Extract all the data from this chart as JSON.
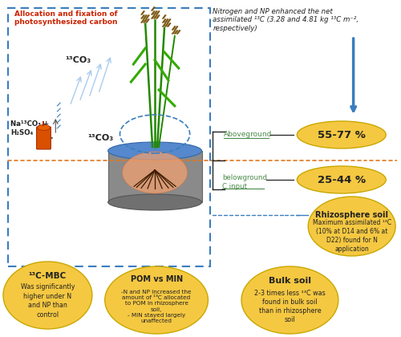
{
  "bg_color": "#ffffff",
  "top_text": "Nitrogen and NP enhanced the net\nassimilated ¹³C (3.28 and 4.81 kg ¹³C m⁻²,\nrespectively)",
  "alloc_text": "Allocation and fixation of\nphotosynthesized carbon",
  "co3_upper": "¹³CO₃",
  "co3_lower": "¹³CO₃",
  "na_text": "Na¹³CO₃ +\nH₂SO₄",
  "aboveground_label": "Aboveground",
  "aboveground_pct": "55-77 %",
  "belowground_label": "belowground\nC input",
  "belowground_pct": "25-44 %",
  "rhizosphere_title": "Rhizosphere soil",
  "rhizosphere_text": "Maximum assimilated ¹³C\n(10% at D14 and 6% at\nD22) found for N\napplication",
  "bulk_title": "Bulk soil",
  "bulk_text": "2-3 times less ¹³C was\nfound in bulk soil\nthan in rhizosphere\nsoil",
  "pom_title": "POM vs MIN",
  "pom_text": "-N and NP increased the\namount of ¹³C allocated\nto POM in rhizosphere\nsoil,\n- MIN stayed largely\nunaffected",
  "mbc_title": "¹³C-MBC",
  "mbc_text": "Was significantly\nhigher under N\nand NP than\ncontrol",
  "dashed_box_color": "#3a7dbf",
  "orange_dashed_color": "#e07820",
  "arrow_color": "#3a7dbf",
  "ellipse_color": "#f5c842",
  "green_text_color": "#4a8a4a",
  "red_text_color": "#cc2200",
  "dark_text_color": "#222222"
}
